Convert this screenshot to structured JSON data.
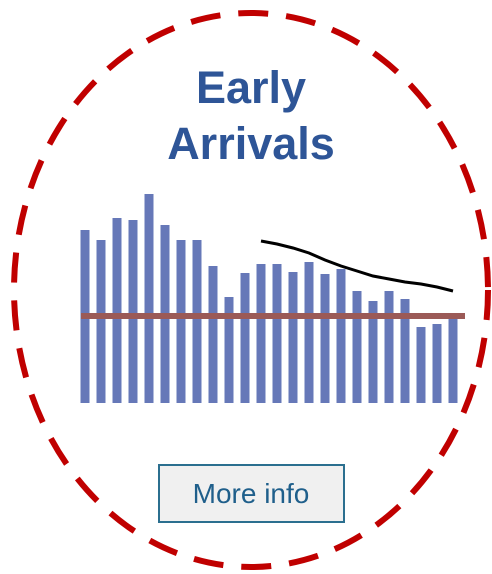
{
  "chart_data": {
    "type": "bar",
    "title_lines": [
      "Early",
      "Arrivals"
    ],
    "values": [
      173,
      163,
      185,
      183,
      209,
      178,
      163,
      163,
      137,
      106,
      130,
      139,
      139,
      131,
      141,
      129,
      134,
      112,
      102,
      112,
      104,
      76,
      79,
      86
    ],
    "color": "#6678b8",
    "reference_line": {
      "value": 87,
      "color": "#9b5a57"
    },
    "trend": {
      "color": "#000000",
      "values": [
        null,
        null,
        null,
        null,
        null,
        null,
        null,
        null,
        null,
        null,
        null,
        162,
        159,
        155,
        150,
        143,
        137,
        132,
        127,
        124,
        121,
        119,
        116,
        112
      ]
    }
  },
  "button": {
    "label": "More info"
  }
}
